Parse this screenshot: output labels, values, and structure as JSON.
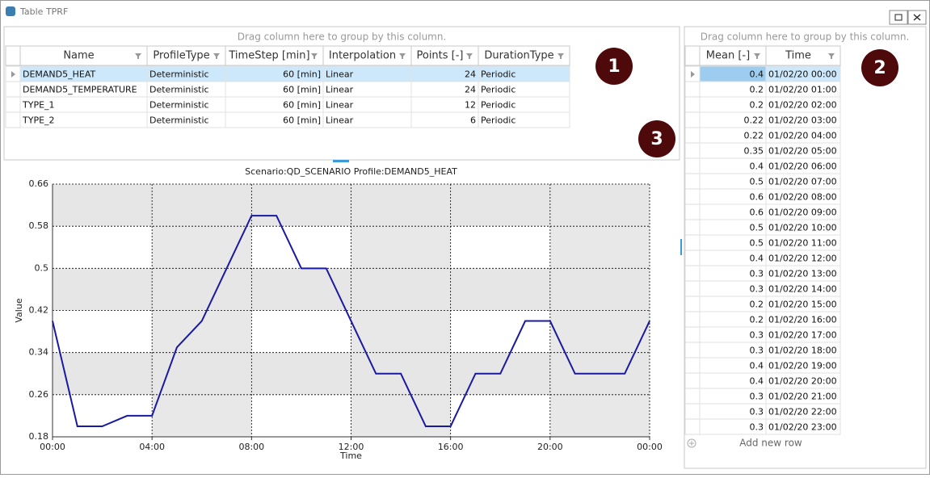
{
  "window": {
    "title": "Table TPRF"
  },
  "profiles_grid": {
    "group_hint": "Drag column here to group by this column.",
    "columns": [
      "Name",
      "ProfileType",
      "TimeStep [min]",
      "Interpolation",
      "Points [-]",
      "DurationType"
    ],
    "rows": [
      [
        "DEMAND5_HEAT",
        "Deterministic",
        "60 [min]",
        "Linear",
        24,
        "Periodic"
      ],
      [
        "DEMAND5_TEMPERATURE",
        "Deterministic",
        "60 [min]",
        "Linear",
        24,
        "Periodic"
      ],
      [
        "TYPE_1",
        "Deterministic",
        "60 [min]",
        "Linear",
        12,
        "Periodic"
      ],
      [
        "TYPE_2",
        "Deterministic",
        "60 [min]",
        "Linear",
        6,
        "Periodic"
      ]
    ]
  },
  "values_grid": {
    "group_hint": "Drag column here to group by this column.",
    "columns": [
      "Mean [-]",
      "Time"
    ],
    "rows": [
      [
        0.4,
        "01/02/20 00:00"
      ],
      [
        0.2,
        "01/02/20 01:00"
      ],
      [
        0.2,
        "01/02/20 02:00"
      ],
      [
        0.22,
        "01/02/20 03:00"
      ],
      [
        0.22,
        "01/02/20 04:00"
      ],
      [
        0.35,
        "01/02/20 05:00"
      ],
      [
        0.4,
        "01/02/20 06:00"
      ],
      [
        0.5,
        "01/02/20 07:00"
      ],
      [
        0.6,
        "01/02/20 08:00"
      ],
      [
        0.6,
        "01/02/20 09:00"
      ],
      [
        0.5,
        "01/02/20 10:00"
      ],
      [
        0.5,
        "01/02/20 11:00"
      ],
      [
        0.4,
        "01/02/20 12:00"
      ],
      [
        0.3,
        "01/02/20 13:00"
      ],
      [
        0.3,
        "01/02/20 14:00"
      ],
      [
        0.2,
        "01/02/20 15:00"
      ],
      [
        0.2,
        "01/02/20 16:00"
      ],
      [
        0.3,
        "01/02/20 17:00"
      ],
      [
        0.3,
        "01/02/20 18:00"
      ],
      [
        0.4,
        "01/02/20 19:00"
      ],
      [
        0.4,
        "01/02/20 20:00"
      ],
      [
        0.3,
        "01/02/20 21:00"
      ],
      [
        0.3,
        "01/02/20 22:00"
      ],
      [
        0.3,
        "01/02/20 23:00"
      ]
    ],
    "add_row": "Add new row"
  },
  "badges": [
    "1",
    "2",
    "3"
  ],
  "chart_data": {
    "type": "line",
    "title": "Scenario:QD_SCENARIO Profile:DEMAND5_HEAT",
    "x_label": "Time",
    "y_label": "Value",
    "color": "#1a1aa0",
    "grid": true,
    "x": [
      0,
      1,
      2,
      3,
      4,
      5,
      6,
      7,
      8,
      9,
      10,
      11,
      12,
      13,
      14,
      15,
      16,
      17,
      18,
      19,
      20,
      21,
      22,
      23,
      24
    ],
    "values": [
      0.4,
      0.2,
      0.2,
      0.22,
      0.22,
      0.35,
      0.4,
      0.5,
      0.6,
      0.6,
      0.5,
      0.5,
      0.4,
      0.3,
      0.3,
      0.2,
      0.2,
      0.3,
      0.3,
      0.4,
      0.4,
      0.3,
      0.3,
      0.3,
      0.4
    ],
    "xlim": [
      0,
      24
    ],
    "xticks": [
      {
        "value": 0,
        "label": "00:00"
      },
      {
        "value": 4,
        "label": "04:00"
      },
      {
        "value": 8,
        "label": "08:00"
      },
      {
        "value": 12,
        "label": "12:00"
      },
      {
        "value": 16,
        "label": "16:00"
      },
      {
        "value": 20,
        "label": "20:00"
      },
      {
        "value": 24,
        "label": "00:00"
      }
    ],
    "ylim": [
      0.18,
      0.66
    ],
    "yticks": [
      0.18,
      0.26,
      0.34,
      0.42,
      0.5,
      0.58,
      0.66
    ]
  }
}
